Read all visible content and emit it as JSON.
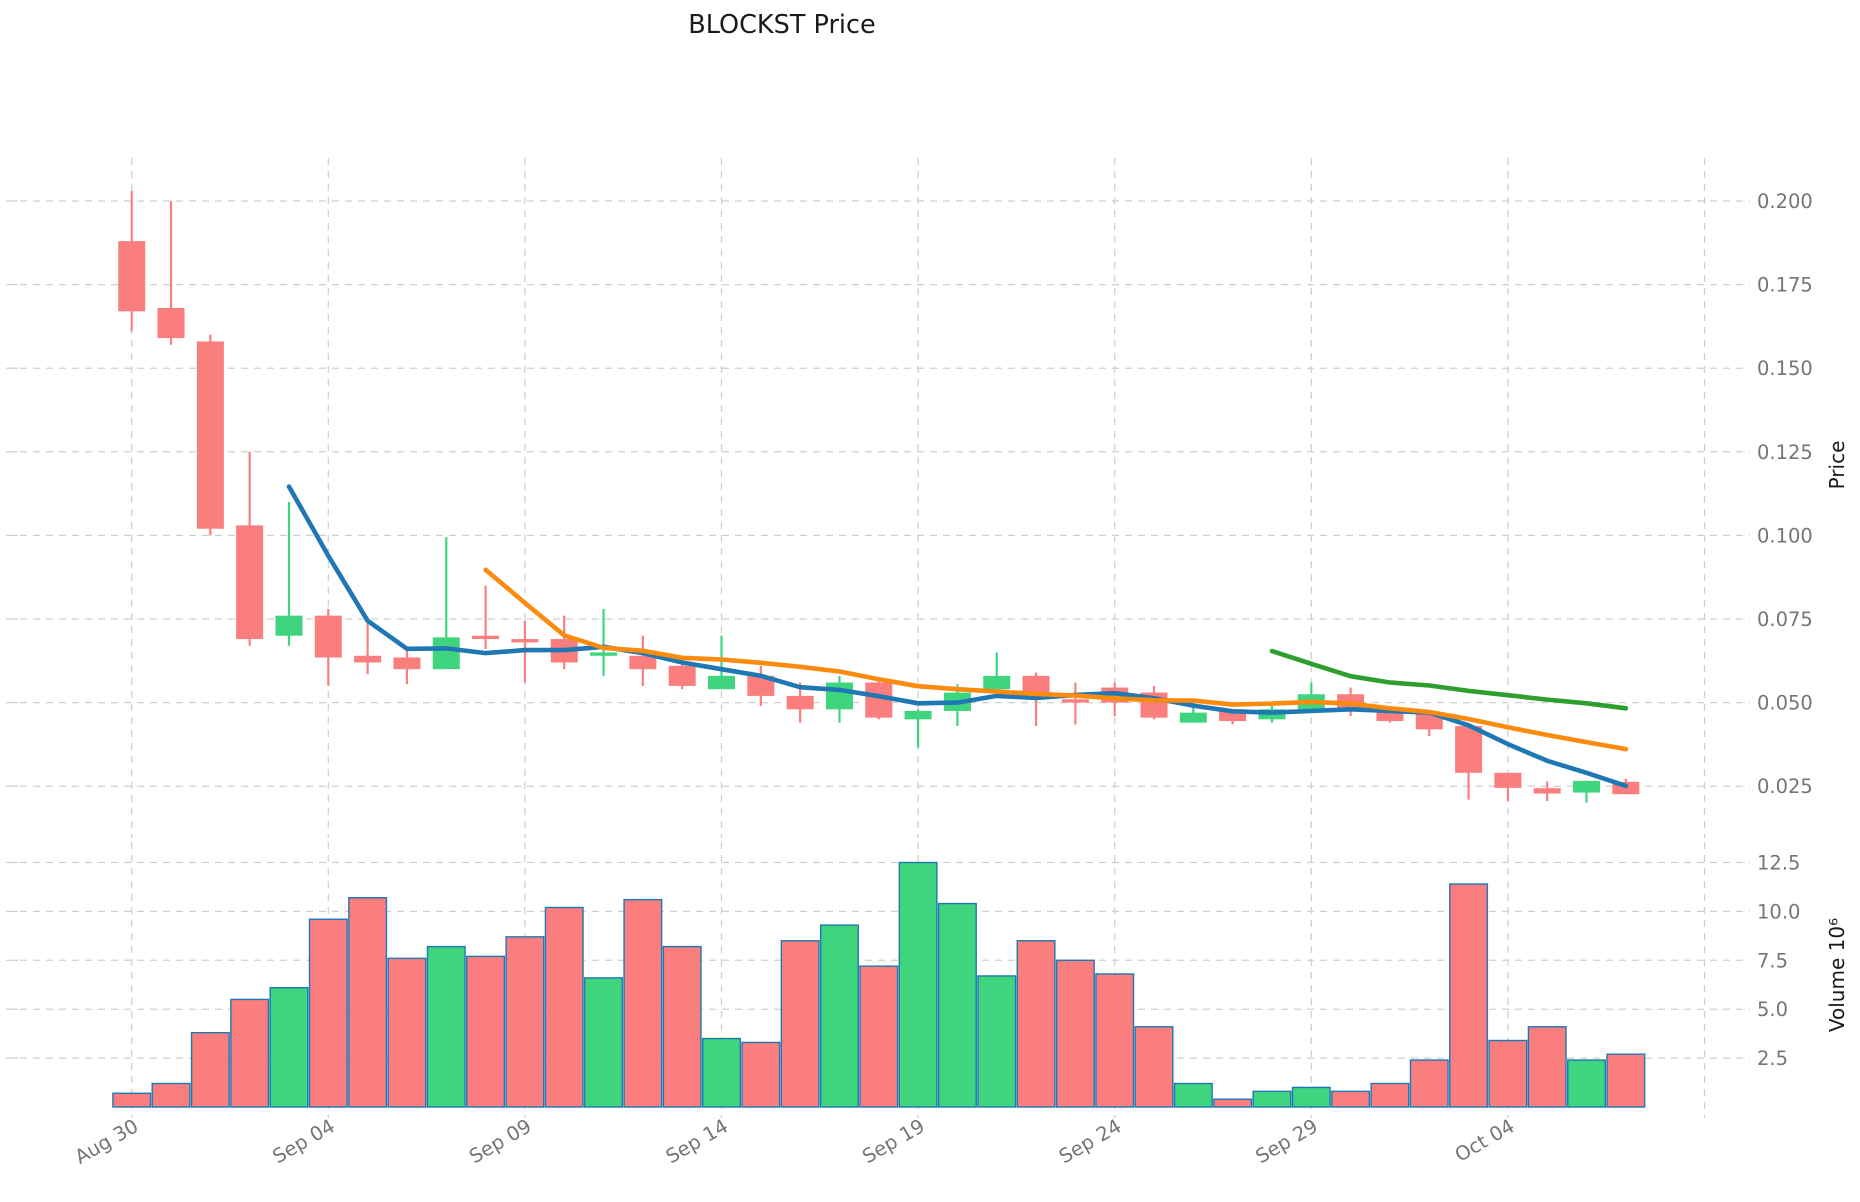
{
  "title": "BLOCKST Price",
  "colors": {
    "candle_up": "#3fd57f",
    "candle_down": "#fa7e7e",
    "volume_bar_edge": "#1f77b4",
    "ma5": "#1f77b4",
    "ma10": "#fb8b0e",
    "ma30": "#2e9e2e",
    "grid": "#cfcfcf",
    "tick_text": "#757575",
    "title_text": "#1a1a1a"
  },
  "axes": {
    "price_label": "Price",
    "volume_label": "Volume  10⁶",
    "price_ticks": [
      {
        "label": "0.200",
        "value": 0.2
      },
      {
        "label": "0.175",
        "value": 0.175
      },
      {
        "label": "0.150",
        "value": 0.15
      },
      {
        "label": "0.125",
        "value": 0.125
      },
      {
        "label": "0.100",
        "value": 0.1
      },
      {
        "label": "0.075",
        "value": 0.075
      },
      {
        "label": "0.050",
        "value": 0.05
      },
      {
        "label": "0.025",
        "value": 0.025
      }
    ],
    "volume_ticks": [
      {
        "label": "12.5",
        "value": 12.5
      },
      {
        "label": "10.0",
        "value": 10.0
      },
      {
        "label": "7.5",
        "value": 7.5
      },
      {
        "label": "5.0",
        "value": 5.0
      },
      {
        "label": "2.5",
        "value": 2.5
      }
    ],
    "x_ticks": [
      {
        "label": "Aug 30",
        "index": 0
      },
      {
        "label": "Sep 04",
        "index": 5
      },
      {
        "label": "Sep 09",
        "index": 10
      },
      {
        "label": "Sep 14",
        "index": 15
      },
      {
        "label": "Sep 19",
        "index": 20
      },
      {
        "label": "Sep 24",
        "index": 25
      },
      {
        "label": "Sep 29",
        "index": 30
      },
      {
        "label": "Oct 04",
        "index": 35
      },
      {
        "label": "",
        "index": 40
      }
    ]
  },
  "chart_data": {
    "type": "candlestick+volume",
    "symbol": "BLOCKST",
    "title": "BLOCKST Price",
    "ylabel": "Price",
    "ylabel_volume": "Volume 10^6",
    "grid": true,
    "legend_position": "none",
    "price_axis_range": [
      0.01,
      0.213
    ],
    "volume_axis_range_millions": [
      0,
      13.6
    ],
    "dates": [
      "Aug 30",
      "Aug 31",
      "Sep 01",
      "Sep 02",
      "Sep 03",
      "Sep 04",
      "Sep 05",
      "Sep 06",
      "Sep 07",
      "Sep 08",
      "Sep 09",
      "Sep 10",
      "Sep 11",
      "Sep 12",
      "Sep 13",
      "Sep 14",
      "Sep 15",
      "Sep 16",
      "Sep 17",
      "Sep 18",
      "Sep 19",
      "Sep 20",
      "Sep 21",
      "Sep 22",
      "Sep 23",
      "Sep 24",
      "Sep 25",
      "Sep 26",
      "Sep 27",
      "Sep 28",
      "Sep 29",
      "Sep 30",
      "Oct 01",
      "Oct 02",
      "Oct 03",
      "Oct 04",
      "Oct 05",
      "Oct 06",
      "Oct 07"
    ],
    "ohlc": [
      [
        0.188,
        0.203,
        0.161,
        0.167
      ],
      [
        0.168,
        0.2,
        0.157,
        0.159
      ],
      [
        0.158,
        0.16,
        0.1,
        0.102
      ],
      [
        0.103,
        0.125,
        0.067,
        0.069
      ],
      [
        0.07,
        0.11,
        0.067,
        0.076
      ],
      [
        0.076,
        0.078,
        0.055,
        0.0635
      ],
      [
        0.064,
        0.0755,
        0.0585,
        0.062
      ],
      [
        0.0635,
        0.066,
        0.0555,
        0.06
      ],
      [
        0.06,
        0.0995,
        0.06,
        0.0695
      ],
      [
        0.07,
        0.085,
        0.066,
        0.069
      ],
      [
        0.069,
        0.0745,
        0.056,
        0.068
      ],
      [
        0.069,
        0.076,
        0.06,
        0.062
      ],
      [
        0.064,
        0.078,
        0.058,
        0.065
      ],
      [
        0.064,
        0.07,
        0.055,
        0.06
      ],
      [
        0.061,
        0.062,
        0.054,
        0.055
      ],
      [
        0.054,
        0.07,
        0.054,
        0.058
      ],
      [
        0.058,
        0.061,
        0.049,
        0.052
      ],
      [
        0.052,
        0.056,
        0.044,
        0.048
      ],
      [
        0.048,
        0.058,
        0.044,
        0.056
      ],
      [
        0.056,
        0.057,
        0.045,
        0.0455
      ],
      [
        0.045,
        0.048,
        0.0365,
        0.0475
      ],
      [
        0.0475,
        0.0555,
        0.043,
        0.053
      ],
      [
        0.054,
        0.065,
        0.053,
        0.058
      ],
      [
        0.058,
        0.059,
        0.043,
        0.053
      ],
      [
        0.051,
        0.056,
        0.0435,
        0.05
      ],
      [
        0.0545,
        0.056,
        0.046,
        0.05
      ],
      [
        0.053,
        0.055,
        0.045,
        0.0455
      ],
      [
        0.044,
        0.05,
        0.044,
        0.047
      ],
      [
        0.048,
        0.048,
        0.0435,
        0.0445
      ],
      [
        0.045,
        0.049,
        0.044,
        0.048
      ],
      [
        0.048,
        0.056,
        0.0475,
        0.0525
      ],
      [
        0.0525,
        0.0545,
        0.046,
        0.048
      ],
      [
        0.048,
        0.048,
        0.044,
        0.0445
      ],
      [
        0.0465,
        0.0465,
        0.04,
        0.042
      ],
      [
        0.043,
        0.043,
        0.021,
        0.029
      ],
      [
        0.029,
        0.029,
        0.0205,
        0.0245
      ],
      [
        0.0244,
        0.0264,
        0.0206,
        0.0228
      ],
      [
        0.0231,
        0.0266,
        0.0201,
        0.0266
      ],
      [
        0.0263,
        0.0272,
        0.0226,
        0.0226
      ]
    ],
    "volume_millions": [
      0.7,
      1.2,
      3.8,
      5.5,
      6.1,
      9.6,
      10.7,
      7.6,
      8.2,
      7.7,
      8.7,
      10.2,
      6.6,
      10.6,
      8.2,
      3.5,
      3.3,
      8.5,
      9.3,
      7.2,
      12.5,
      10.4,
      6.7,
      8.5,
      7.5,
      6.8,
      4.1,
      1.2,
      0.4,
      0.8,
      1.0,
      0.8,
      1.2,
      2.4,
      11.4,
      3.4,
      4.1,
      2.4,
      2.7
    ],
    "series": [
      {
        "name": "MA5",
        "color": "#1f77b4",
        "values": [
          null,
          null,
          null,
          null,
          0.1146,
          0.0939,
          0.0745,
          0.0661,
          0.0662,
          0.0648,
          0.0657,
          0.0657,
          0.0667,
          0.0648,
          0.062,
          0.06,
          0.058,
          0.0546,
          0.0538,
          0.0519,
          0.0498,
          0.05,
          0.052,
          0.0514,
          0.0523,
          0.0528,
          0.0513,
          0.0491,
          0.0474,
          0.047,
          0.0475,
          0.048,
          0.0475,
          0.047,
          0.0432,
          0.0376,
          0.0326,
          0.029,
          0.0251
        ]
      },
      {
        "name": "MA10",
        "color": "#fb8b0e",
        "values": [
          null,
          null,
          null,
          null,
          null,
          null,
          null,
          null,
          null,
          0.0897,
          0.0798,
          0.0701,
          0.0664,
          0.0655,
          0.0634,
          0.0629,
          0.0619,
          0.0607,
          0.0593,
          0.057,
          0.0549,
          0.054,
          0.0533,
          0.0526,
          0.0521,
          0.0513,
          0.0507,
          0.0506,
          0.0494,
          0.0497,
          0.0502,
          0.0497,
          0.0483,
          0.0472,
          0.0451,
          0.0426,
          0.0403,
          0.0382,
          0.0361
        ]
      },
      {
        "name": "MA30",
        "color": "#2e9e2e",
        "values": [
          null,
          null,
          null,
          null,
          null,
          null,
          null,
          null,
          null,
          null,
          null,
          null,
          null,
          null,
          null,
          null,
          null,
          null,
          null,
          null,
          null,
          null,
          null,
          null,
          null,
          null,
          null,
          null,
          null,
          0.0654,
          0.0616,
          0.0579,
          0.056,
          0.0551,
          0.0535,
          0.0522,
          0.0509,
          0.0498,
          0.0483
        ]
      }
    ]
  }
}
